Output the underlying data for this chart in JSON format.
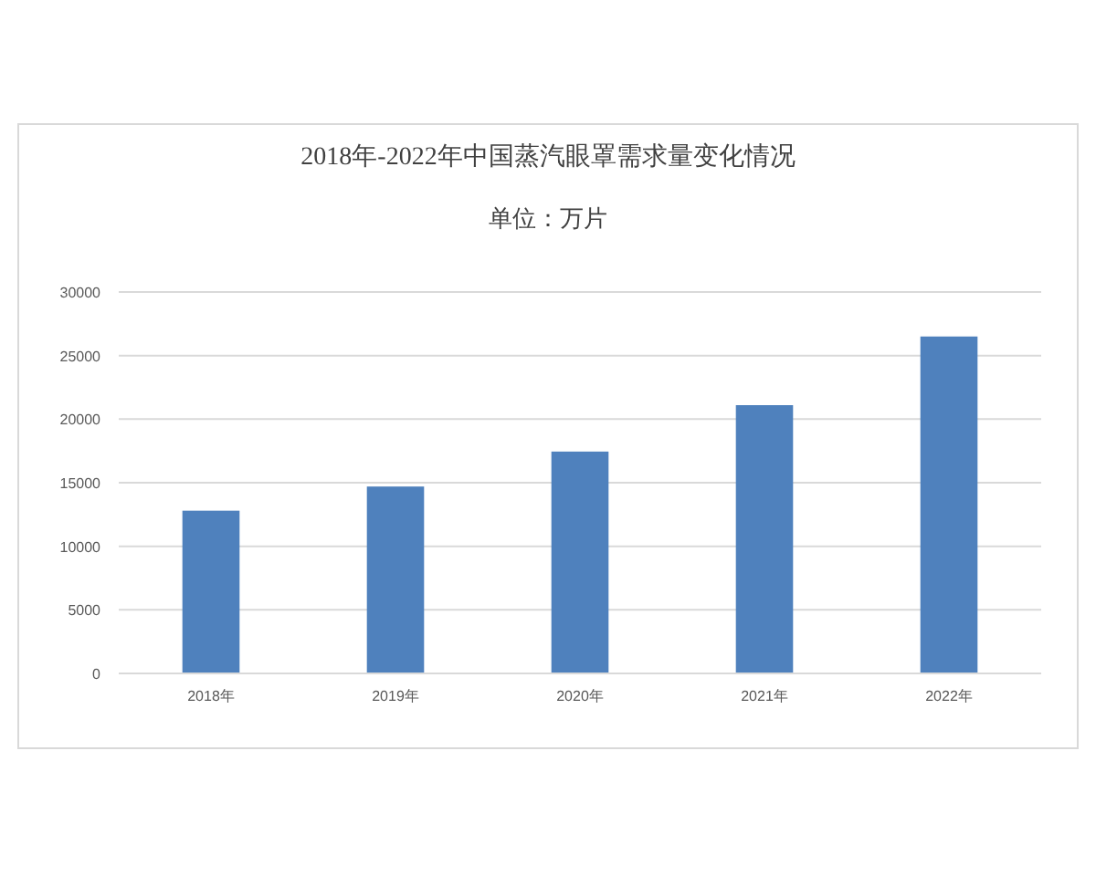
{
  "chart_data": {
    "type": "bar",
    "title": "2018年-2022年中国蒸汽眼罩需求量变化情况",
    "subtitle": "单位：万片",
    "categories": [
      "2018年",
      "2019年",
      "2020年",
      "2021年",
      "2022年"
    ],
    "values": [
      12800,
      14700,
      17450,
      21100,
      26500
    ],
    "color": "#4f81bd",
    "ylim": [
      0,
      30000
    ],
    "yticks": [
      0,
      5000,
      10000,
      15000,
      20000,
      25000,
      30000
    ],
    "grid": "y"
  }
}
